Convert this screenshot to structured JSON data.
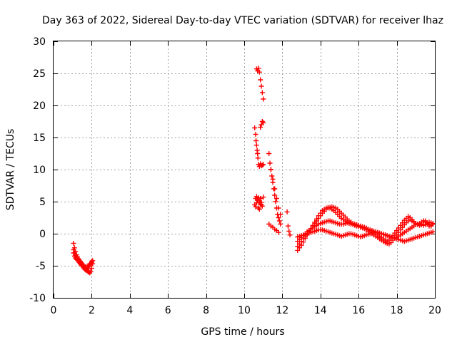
{
  "chart_data": {
    "type": "scatter",
    "title": "Day 363 of 2022, Sidereal Day-to-day VTEC variation (SDTVAR) for receiver lhaz",
    "xlabel": "GPS time / hours",
    "ylabel": "SDTVAR / TECUs",
    "xlim": [
      0,
      20
    ],
    "ylim": [
      -10,
      30
    ],
    "xticks": [
      0,
      2,
      4,
      6,
      8,
      10,
      12,
      14,
      16,
      18,
      20
    ],
    "yticks": [
      -10,
      -5,
      0,
      5,
      10,
      15,
      20,
      25,
      30
    ],
    "xtick_labels": [
      "0",
      "2",
      "4",
      "6",
      "8",
      "10",
      "12",
      "14",
      "16",
      "18",
      "20"
    ],
    "ytick_labels": [
      "-10",
      "-5",
      "0",
      "5",
      "10",
      "15",
      "20",
      "25",
      "30"
    ],
    "grid": true,
    "marker": "+",
    "color": "#ff0000",
    "series": [
      {
        "name": "SDTVAR",
        "x": [
          1.05,
          1.1,
          1.15,
          1.2,
          1.25,
          1.3,
          1.35,
          1.4,
          1.45,
          1.5,
          1.55,
          1.6,
          1.65,
          1.7,
          1.75,
          1.8,
          1.85,
          1.9,
          1.95,
          2.0,
          2.05,
          1.05,
          1.1,
          1.15,
          1.2,
          1.25,
          1.3,
          1.35,
          1.4,
          1.45,
          1.5,
          1.55,
          1.6,
          1.65,
          1.7,
          1.75,
          1.8,
          1.85,
          1.9,
          1.95,
          2.0,
          1.05,
          1.1,
          1.15,
          1.2,
          1.3,
          1.4,
          1.5,
          1.6,
          1.7,
          1.8,
          1.9,
          2.0,
          2.05,
          10.65,
          10.7,
          10.75,
          10.8,
          10.85,
          10.9,
          10.95,
          11.0,
          10.55,
          10.6,
          10.62,
          10.65,
          10.68,
          10.7,
          10.72,
          10.75,
          10.8,
          10.85,
          10.9,
          10.95,
          11.0,
          10.6,
          10.65,
          10.7,
          10.75,
          10.8,
          10.85,
          10.9,
          10.95,
          11.0,
          10.85,
          10.9,
          10.95,
          11.0,
          10.55,
          10.6,
          10.65,
          10.7,
          10.75,
          10.8,
          10.85,
          10.9,
          11.3,
          11.35,
          11.4,
          11.45,
          11.5,
          11.55,
          11.6,
          11.65,
          11.7,
          11.75,
          11.8,
          11.85,
          11.9,
          11.4,
          11.5,
          11.6,
          11.7,
          11.8,
          11.9,
          11.3,
          11.4,
          11.5,
          11.6,
          11.7,
          11.8,
          12.25,
          12.3,
          12.35,
          12.4,
          12.8,
          12.9,
          13.0,
          13.1,
          13.2,
          13.3,
          13.4,
          13.5,
          13.6,
          13.7,
          13.8,
          13.9,
          14.0,
          14.1,
          14.2,
          14.3,
          14.4,
          14.5,
          14.6,
          14.7,
          14.8,
          14.9,
          15.0,
          15.1,
          15.2,
          15.3,
          15.4,
          15.5,
          15.6,
          15.7,
          15.8,
          15.9,
          16.0,
          16.1,
          16.2,
          16.3,
          16.4,
          16.5,
          16.6,
          16.7,
          16.8,
          16.9,
          17.0,
          17.1,
          17.2,
          17.3,
          17.4,
          17.5,
          17.6,
          17.7,
          17.8,
          17.9,
          18.0,
          18.1,
          18.2,
          18.3,
          18.4,
          18.5,
          18.6,
          18.7,
          18.8,
          18.9,
          19.0,
          19.1,
          19.2,
          19.3,
          19.4,
          19.5,
          19.6,
          19.7,
          19.8,
          19.9,
          12.8,
          12.9,
          13.0,
          13.1,
          13.2,
          13.3,
          13.4,
          13.5,
          13.6,
          13.7,
          13.8,
          13.9,
          14.0,
          14.1,
          14.2,
          14.3,
          14.4,
          14.5,
          14.6,
          14.7,
          14.8,
          14.9,
          15.0,
          15.1,
          15.2,
          15.3,
          15.4,
          15.5,
          15.6,
          15.7,
          15.8,
          15.9,
          16.0,
          16.1,
          16.2,
          16.3,
          16.4,
          16.5,
          16.6,
          16.7,
          16.8,
          16.9,
          17.0,
          17.1,
          17.2,
          17.3,
          17.4,
          17.5,
          17.6,
          17.7,
          17.8,
          17.9,
          18.0,
          18.1,
          18.2,
          18.3,
          18.4,
          18.5,
          18.6,
          18.7,
          18.8,
          18.9,
          19.0,
          19.1,
          19.2,
          19.3,
          19.4,
          19.5,
          19.6,
          19.7,
          19.8,
          19.9,
          12.8,
          12.9,
          13.0,
          13.1,
          13.2,
          13.3,
          13.4,
          13.5,
          13.6,
          13.7,
          13.8,
          13.9,
          14.0,
          14.1,
          14.2,
          14.3,
          14.4,
          14.5,
          14.6,
          14.7,
          14.8,
          14.9,
          15.0,
          15.1,
          15.2,
          15.3,
          15.4,
          15.5,
          15.6,
          15.7,
          15.8,
          15.9,
          16.0,
          16.1,
          16.2,
          16.3,
          16.4,
          16.5,
          16.6,
          16.7,
          16.8,
          16.9,
          17.0,
          17.1,
          17.2,
          17.3,
          17.4,
          17.5,
          17.6,
          17.7,
          17.8,
          17.9,
          18.0,
          18.1,
          18.2,
          18.3,
          18.4,
          18.5,
          18.6,
          18.7,
          18.8,
          18.9,
          19.0,
          19.1,
          19.2,
          19.3,
          19.4,
          19.5,
          19.6,
          19.7,
          19.8,
          19.9,
          12.8,
          12.9,
          13.0,
          13.1,
          13.2,
          13.3,
          13.4,
          13.5,
          13.6,
          13.7,
          13.8,
          13.9,
          14.0,
          14.1,
          14.2,
          14.3,
          14.4,
          14.5,
          14.6,
          14.7,
          14.8,
          14.9,
          15.0,
          15.1,
          15.2,
          15.3,
          15.4,
          15.5,
          15.6,
          15.7,
          15.8,
          15.9,
          16.0,
          16.1,
          16.2,
          16.3,
          16.4,
          16.5,
          16.6,
          16.7,
          16.8,
          16.9,
          17.0,
          17.1,
          17.2,
          17.3,
          17.4,
          17.5,
          17.6,
          17.7,
          17.8,
          17.9,
          18.0,
          18.1,
          18.2,
          18.3,
          18.4,
          18.5,
          18.6,
          18.7,
          18.8,
          18.9,
          19.0,
          19.1,
          19.2,
          19.3,
          19.4,
          19.5,
          19.6,
          19.7,
          19.8,
          19.9
        ],
        "y": [
          -1.5,
          -2.2,
          -2.8,
          -3.3,
          -3.6,
          -3.9,
          -4.1,
          -4.3,
          -4.5,
          -4.7,
          -4.9,
          -5.1,
          -5.3,
          -5.5,
          -5.7,
          -5.9,
          -6.0,
          -6.1,
          -5.9,
          -5.4,
          -4.7,
          -2.5,
          -3.0,
          -3.4,
          -3.7,
          -4.0,
          -4.3,
          -4.5,
          -4.7,
          -4.9,
          -5.0,
          -5.2,
          -5.4,
          -5.6,
          -5.7,
          -5.6,
          -5.4,
          -5.1,
          -4.9,
          -4.6,
          -4.3,
          -3.0,
          -3.5,
          -3.8,
          -4.0,
          -4.3,
          -4.6,
          -4.8,
          -5.0,
          -5.1,
          -5.0,
          -4.8,
          -4.5,
          -4.2,
          25.7,
          25.4,
          25.8,
          25.2,
          24.0,
          23.0,
          22.0,
          21.0,
          16.5,
          15.5,
          14.5,
          13.8,
          13.0,
          12.5,
          11.8,
          10.8,
          10.5,
          10.9,
          10.6,
          10.7,
          10.8,
          5.5,
          5.8,
          5.3,
          5.6,
          5.0,
          4.6,
          4.5,
          4.3,
          5.7,
          16.6,
          17.0,
          17.5,
          17.3,
          4.5,
          4.2,
          4.8,
          5.2,
          4.0,
          3.8,
          5.5,
          4.9,
          12.5,
          11.0,
          10.0,
          9.0,
          8.0,
          7.0,
          6.0,
          5.0,
          4.0,
          3.0,
          2.5,
          2.0,
          1.5,
          10.0,
          8.5,
          7.0,
          5.5,
          4.0,
          3.0,
          1.5,
          1.2,
          1.0,
          0.7,
          0.5,
          0.2,
          3.4,
          1.2,
          0.4,
          -0.2,
          -2.6,
          -2.2,
          -1.8,
          -1.3,
          -0.7,
          -0.2,
          0.3,
          0.8,
          1.3,
          1.8,
          2.3,
          2.8,
          3.2,
          3.6,
          3.8,
          4.0,
          4.1,
          4.0,
          3.8,
          3.6,
          3.3,
          3.0,
          2.7,
          2.4,
          2.2,
          2.0,
          1.8,
          1.6,
          1.5,
          1.4,
          1.3,
          1.2,
          1.1,
          1.0,
          0.9,
          0.8,
          0.6,
          0.4,
          0.2,
          0.0,
          -0.2,
          -0.4,
          -0.6,
          -0.8,
          -1.0,
          -1.2,
          -1.4,
          -1.5,
          -1.6,
          -1.4,
          -1.0,
          -0.6,
          -0.2,
          0.2,
          0.6,
          1.0,
          1.4,
          1.7,
          2.0,
          2.2,
          2.0,
          1.8,
          1.6,
          1.5,
          1.6,
          1.8,
          2.0,
          1.8,
          1.5,
          1.2,
          1.3,
          1.6,
          -2.0,
          -1.6,
          -1.2,
          -0.8,
          -0.4,
          0.0,
          0.4,
          0.8,
          1.2,
          1.6,
          2.0,
          2.4,
          2.8,
          3.2,
          3.5,
          3.8,
          4.0,
          4.1,
          4.2,
          4.1,
          4.0,
          3.8,
          3.5,
          3.2,
          2.9,
          2.6,
          2.3,
          2.0,
          1.8,
          1.6,
          1.5,
          1.4,
          1.3,
          1.2,
          1.1,
          1.0,
          0.9,
          0.7,
          0.5,
          0.4,
          0.2,
          0.0,
          -0.2,
          -0.4,
          -0.6,
          -0.8,
          -1.0,
          -1.2,
          -1.0,
          -0.7,
          -0.3,
          0.1,
          0.5,
          0.9,
          1.3,
          1.7,
          2.1,
          2.4,
          2.7,
          2.5,
          2.2,
          1.9,
          1.6,
          1.4,
          1.3,
          1.5,
          1.8,
          2.0,
          1.7,
          1.4,
          1.2,
          1.5,
          -1.2,
          -0.9,
          -0.6,
          -0.3,
          0.0,
          0.3,
          0.5,
          0.7,
          0.9,
          1.1,
          1.3,
          1.5,
          1.6,
          1.7,
          1.8,
          1.9,
          2.0,
          2.0,
          1.9,
          1.8,
          1.7,
          1.6,
          1.5,
          1.5,
          1.5,
          1.6,
          1.7,
          1.7,
          1.6,
          1.5,
          1.4,
          1.3,
          1.2,
          1.1,
          1.0,
          0.9,
          0.8,
          0.7,
          0.6,
          0.5,
          0.4,
          0.3,
          0.2,
          0.1,
          0.0,
          -0.1,
          -0.2,
          -0.3,
          -0.4,
          -0.5,
          -0.6,
          -0.7,
          -0.6,
          -0.4,
          -0.2,
          0.0,
          0.2,
          0.4,
          0.6,
          0.8,
          1.0,
          1.2,
          1.4,
          1.5,
          1.5,
          1.4,
          1.3,
          1.4,
          1.6,
          1.8,
          1.7,
          1.5,
          -0.5,
          -0.4,
          -0.3,
          -0.2,
          -0.1,
          0.0,
          0.1,
          0.2,
          0.3,
          0.4,
          0.5,
          0.6,
          0.6,
          0.6,
          0.5,
          0.4,
          0.3,
          0.2,
          0.1,
          0.0,
          -0.1,
          -0.2,
          -0.3,
          -0.4,
          -0.3,
          -0.2,
          -0.1,
          0.0,
          0.0,
          -0.1,
          -0.2,
          -0.3,
          -0.4,
          -0.5,
          -0.4,
          -0.3,
          -0.2,
          -0.1,
          0.0,
          0.1,
          0.2,
          0.3,
          0.2,
          0.1,
          0.0,
          -0.1,
          -0.2,
          -0.3,
          -0.4,
          -0.5,
          -0.6,
          -0.7,
          -0.8,
          -0.9,
          -1.0,
          -1.1,
          -1.2,
          -1.1,
          -1.0,
          -0.9,
          -0.8,
          -0.7,
          -0.6,
          -0.5,
          -0.4,
          -0.3,
          -0.2,
          -0.1,
          0.0,
          0.1,
          0.2,
          0.3
        ]
      }
    ]
  }
}
